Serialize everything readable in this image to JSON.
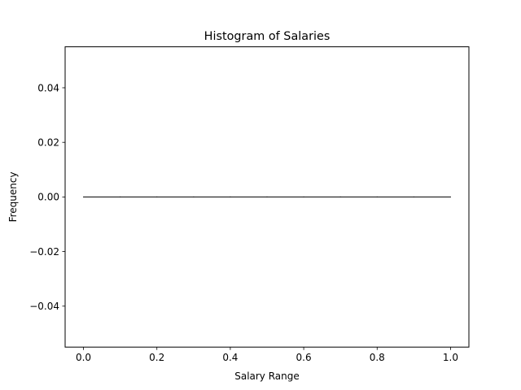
{
  "chart_data": {
    "type": "bar",
    "title": "Histogram of Salaries",
    "xlabel": "Salary Range",
    "ylabel": "Frequency",
    "xlim": [
      -0.05,
      1.05
    ],
    "ylim": [
      -0.055,
      0.055
    ],
    "xticks": [
      0.0,
      0.2,
      0.4,
      0.6,
      0.8,
      1.0
    ],
    "xtick_labels": [
      "0.0",
      "0.2",
      "0.4",
      "0.6",
      "0.8",
      "1.0"
    ],
    "yticks": [
      -0.04,
      -0.02,
      0.0,
      0.02,
      0.04
    ],
    "ytick_labels": [
      "−0.04",
      "−0.02",
      "0.00",
      "0.02",
      "0.04"
    ],
    "bins": [
      {
        "x0": 0.0,
        "x1": 0.1,
        "count": 0
      },
      {
        "x0": 0.1,
        "x1": 0.2,
        "count": 0
      },
      {
        "x0": 0.2,
        "x1": 0.3,
        "count": 0
      },
      {
        "x0": 0.3,
        "x1": 0.4,
        "count": 0
      },
      {
        "x0": 0.4,
        "x1": 0.5,
        "count": 0
      },
      {
        "x0": 0.5,
        "x1": 0.6,
        "count": 0
      },
      {
        "x0": 0.6,
        "x1": 0.7,
        "count": 0
      },
      {
        "x0": 0.7,
        "x1": 0.8,
        "count": 0
      },
      {
        "x0": 0.8,
        "x1": 0.9,
        "count": 0
      },
      {
        "x0": 0.9,
        "x1": 1.0,
        "count": 0
      }
    ],
    "bar_edge_color": "#000000",
    "grid": false,
    "legend": "none"
  }
}
